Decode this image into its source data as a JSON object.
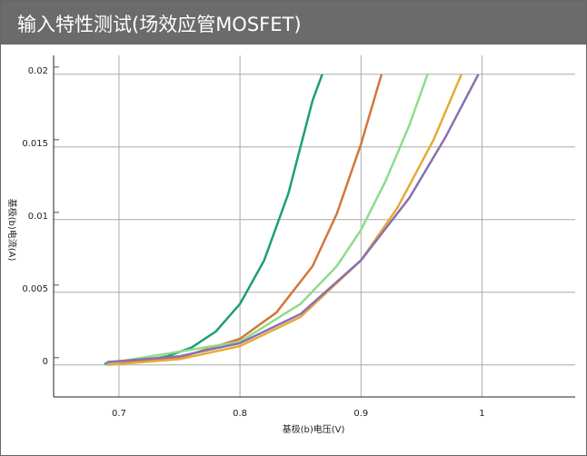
{
  "chart_data": {
    "type": "line",
    "title": "输入特性测试(场效应管MOSFET)",
    "x_label": "基极(b)电压(V)",
    "y_label": "基极(b)电流(A)",
    "xlim": [
      0.646,
      1.077
    ],
    "ylim": [
      -0.0022,
      0.0213
    ],
    "xticks": [
      0.7,
      0.8,
      0.9,
      1
    ],
    "yticks": [
      0,
      0.005,
      0.01,
      0.015,
      0.02
    ],
    "grid": true,
    "series": [
      {
        "color": "#1f9e7a",
        "x": [
          0.688,
          0.72,
          0.74,
          0.76,
          0.78,
          0.8,
          0.82,
          0.84,
          0.86,
          0.868
        ],
        "values": [
          0.0001,
          0.0003,
          0.0006,
          0.0012,
          0.0023,
          0.0042,
          0.0072,
          0.0118,
          0.0182,
          0.02
        ]
      },
      {
        "color": "#d2773a",
        "x": [
          0.69,
          0.75,
          0.8,
          0.83,
          0.86,
          0.88,
          0.9,
          0.917
        ],
        "values": [
          0.0001,
          0.0005,
          0.0018,
          0.0036,
          0.0068,
          0.0104,
          0.0152,
          0.02
        ]
      },
      {
        "color": "#8fdc8a",
        "x": [
          0.69,
          0.8,
          0.85,
          0.88,
          0.9,
          0.92,
          0.94,
          0.955
        ],
        "values": [
          0.0001,
          0.0016,
          0.0042,
          0.0068,
          0.0093,
          0.0126,
          0.0165,
          0.02
        ]
      },
      {
        "color": "#e6aa3a",
        "x": [
          0.69,
          0.75,
          0.8,
          0.85,
          0.9,
          0.93,
          0.96,
          0.983
        ],
        "values": [
          0.0,
          0.0004,
          0.0013,
          0.0033,
          0.0072,
          0.0108,
          0.0155,
          0.02
        ]
      },
      {
        "color": "#8a70b0",
        "x": [
          0.69,
          0.75,
          0.8,
          0.85,
          0.9,
          0.94,
          0.97,
          0.997
        ],
        "values": [
          0.0002,
          0.0006,
          0.0015,
          0.0035,
          0.0072,
          0.0115,
          0.0157,
          0.02
        ]
      }
    ]
  }
}
